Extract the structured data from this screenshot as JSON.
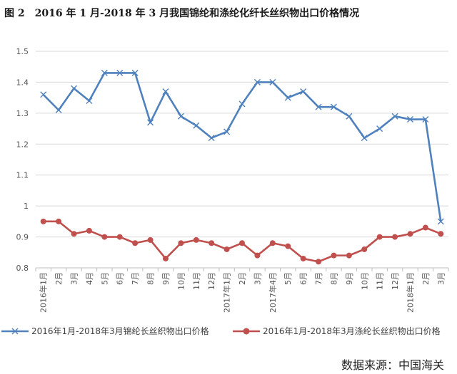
{
  "title": "图 2　2016 年 1 月-2018 年 3 月我国锦纶和涤纶化纤长丝织物出口价格情况",
  "source": "数据来源：中国海关",
  "colors": {
    "nylon": "#4f81bd",
    "polyester": "#c0504d",
    "grid": "#d9d9d9",
    "axis": "#bfbfbf"
  },
  "chart_data": {
    "type": "line",
    "title": "图 2　2016 年 1 月-2018 年 3 月我国锦纶和涤纶化纤长丝织物出口价格情况",
    "xlabel": "",
    "ylabel": "",
    "ylim": [
      0.8,
      1.5
    ],
    "yticks": [
      "0.8",
      "0.9",
      "1",
      "1.1",
      "1.2",
      "1.3",
      "1.4",
      "1.5"
    ],
    "grid": true,
    "legend_position": "bottom",
    "categories": [
      "2016年1月",
      "2月",
      "3月",
      "4月",
      "5月",
      "6月",
      "7月",
      "8月",
      "9月",
      "10月",
      "11月",
      "12月",
      "2017年1月",
      "2月",
      "3月",
      "2017年4月",
      "5月",
      "6月",
      "7月",
      "8月",
      "9月",
      "10月",
      "11月",
      "12月",
      "2018年1月",
      "2月",
      "3月"
    ],
    "series": [
      {
        "name": "2016年1月-2018年3月锦纶长丝织物出口价格",
        "marker": "x",
        "values": [
          1.36,
          1.31,
          1.38,
          1.34,
          1.43,
          1.43,
          1.43,
          1.27,
          1.37,
          1.29,
          1.26,
          1.22,
          1.24,
          1.33,
          1.4,
          1.4,
          1.35,
          1.37,
          1.32,
          1.32,
          1.29,
          1.22,
          1.25,
          1.29,
          1.28,
          1.28,
          0.95
        ]
      },
      {
        "name": "2016年1月-2018年3月涤纶长丝织物出口价格",
        "marker": "circle",
        "values": [
          0.95,
          0.95,
          0.91,
          0.92,
          0.9,
          0.9,
          0.88,
          0.89,
          0.83,
          0.88,
          0.89,
          0.88,
          0.86,
          0.88,
          0.84,
          0.88,
          0.87,
          0.83,
          0.82,
          0.84,
          0.84,
          0.86,
          0.9,
          0.9,
          0.91,
          0.93,
          0.91
        ]
      }
    ]
  }
}
